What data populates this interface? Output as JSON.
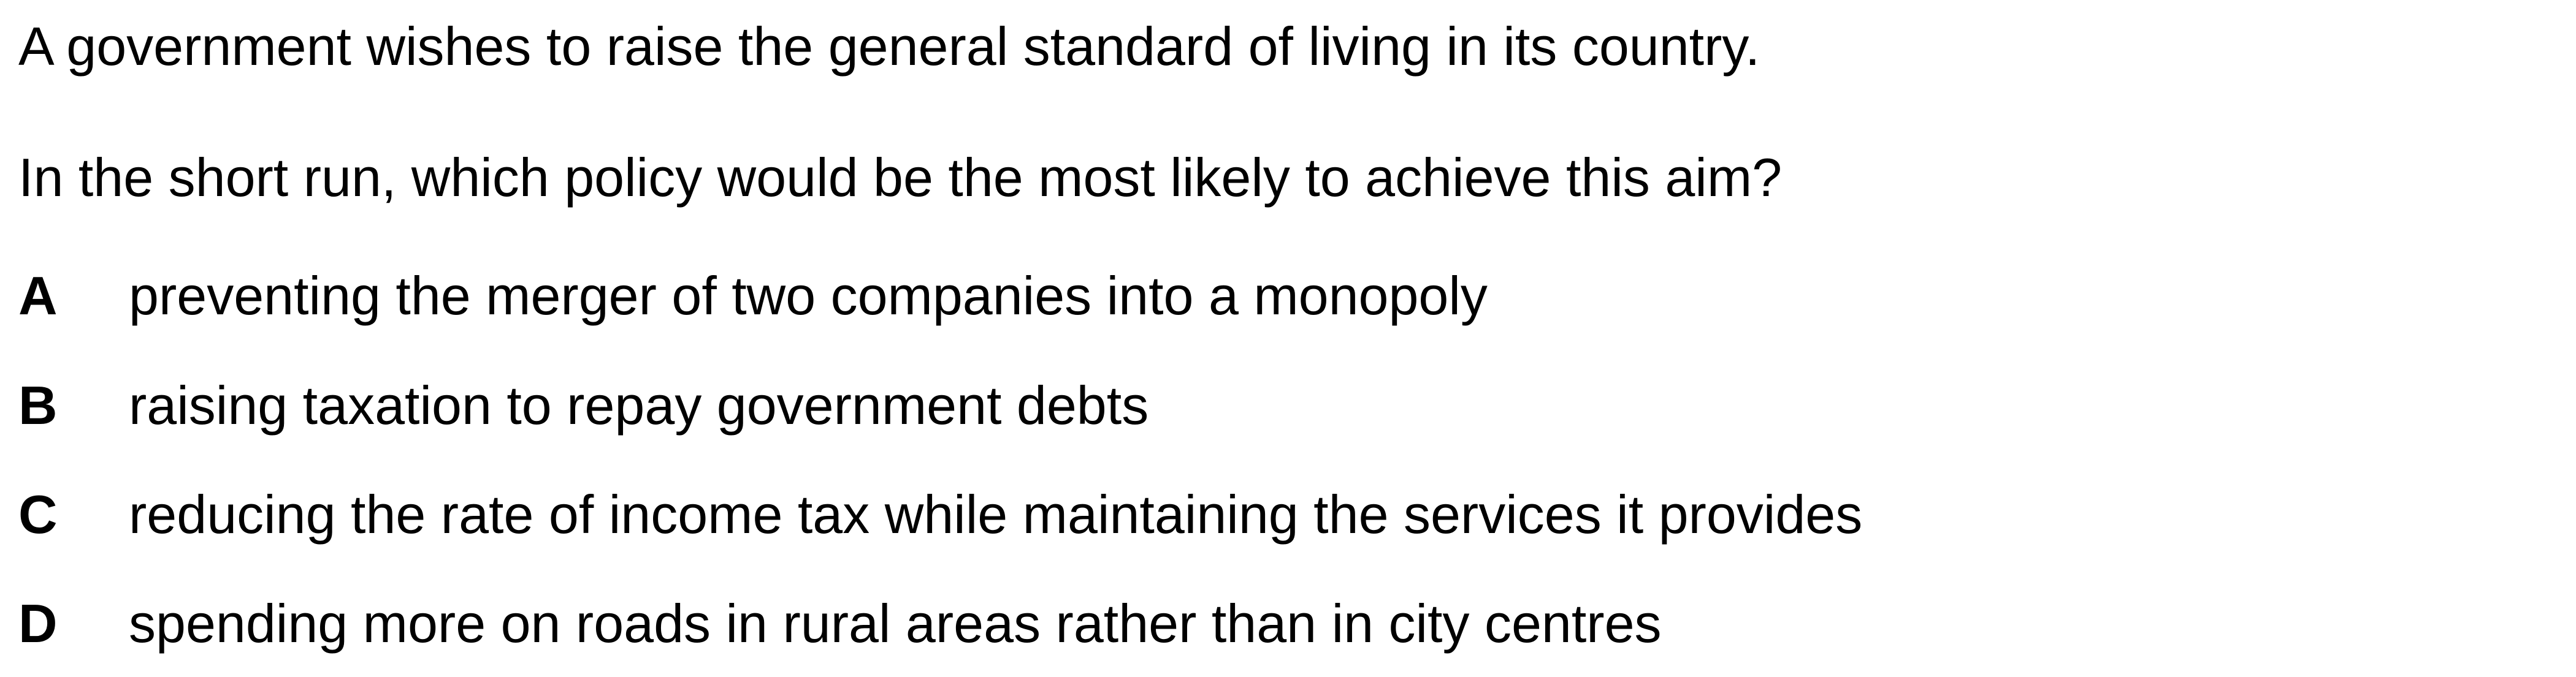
{
  "question": {
    "stem": [
      "A government wishes to raise the general standard of living in its country.",
      "In the short run, which policy would be the most likely to achieve this aim?"
    ],
    "options": [
      {
        "letter": "A",
        "text": "preventing the merger of two companies into a monopoly"
      },
      {
        "letter": "B",
        "text": "raising taxation to repay government debts"
      },
      {
        "letter": "C",
        "text": "reducing the rate of income tax while maintaining the services it provides"
      },
      {
        "letter": "D",
        "text": "spending more on roads in rural areas rather than in city centres"
      }
    ]
  }
}
